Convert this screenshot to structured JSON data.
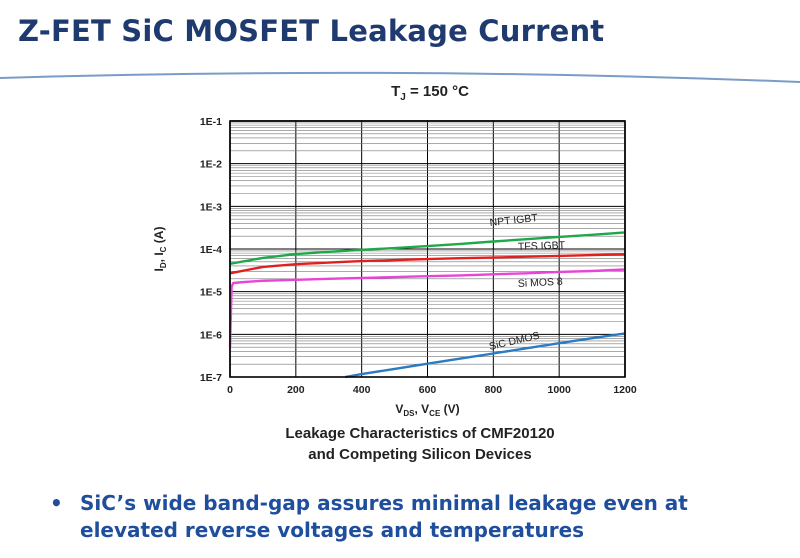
{
  "slide": {
    "title": "Z-FET SiC MOSFET Leakage Current",
    "caption_line1": "Leakage Characteristics of CMF20120",
    "caption_line2": "and Competing Silicon Devices",
    "bullet_marker": "•",
    "bullet": "SiC’s wide band-gap assures minimal leakage even at elevated reverse voltages and temperatures"
  },
  "colors": {
    "title": "#1f3a6e",
    "bullet": "#1f4e9c",
    "rule": "#7a9cc8"
  },
  "chart_data": {
    "type": "line",
    "title": "TJ = 150 °C",
    "xlabel": "VDS, VCE (V)",
    "ylabel": "ID, IC (A)",
    "xlim": [
      0,
      1200
    ],
    "ylim": [
      1e-07,
      0.1
    ],
    "yscale": "log",
    "grid": true,
    "x_ticks": [
      0,
      200,
      400,
      600,
      800,
      1000,
      1200
    ],
    "x_tick_labels": [
      "0",
      "200",
      "400",
      "600",
      "800",
      "1000",
      "1200"
    ],
    "y_ticks": [
      0.1,
      0.01,
      0.001,
      0.0001,
      1e-05,
      1e-06,
      1e-07
    ],
    "y_tick_labels": [
      "1E-1",
      "1E-2",
      "1E-3",
      "1E-4",
      "1E-5",
      "1E-6",
      "1E-7"
    ],
    "series": [
      {
        "name": "NPT IGBT",
        "color": "#1fa84a",
        "x": [
          0,
          100,
          200,
          300,
          400,
          500,
          600,
          700,
          800,
          900,
          1000,
          1100,
          1200
        ],
        "y": [
          4.5e-05,
          6.2e-05,
          7.6e-05,
          8.6e-05,
          9.6e-05,
          0.000105,
          0.000117,
          0.000132,
          0.00015,
          0.00017,
          0.000192,
          0.000215,
          0.000245
        ]
      },
      {
        "name": "TFS IGBT",
        "color": "#e02020",
        "x": [
          0,
          100,
          200,
          300,
          400,
          500,
          600,
          700,
          800,
          900,
          1000,
          1100,
          1200
        ],
        "y": [
          2.7e-05,
          3.8e-05,
          4.4e-05,
          4.8e-05,
          5.2e-05,
          5.5e-05,
          5.8e-05,
          6.1e-05,
          6.3e-05,
          6.6e-05,
          6.9e-05,
          7.2e-05,
          7.5e-05
        ]
      },
      {
        "name": "Si MOS 8",
        "color": "#e844d8",
        "x": [
          0,
          5,
          10,
          50,
          100,
          200,
          300,
          400,
          500,
          600,
          700,
          800,
          900,
          1000,
          1100,
          1200
        ],
        "y": [
          5e-07,
          1.3e-05,
          1.6e-05,
          1.7e-05,
          1.8e-05,
          1.9e-05,
          2e-05,
          2.1e-05,
          2.2e-05,
          2.3e-05,
          2.4e-05,
          2.55e-05,
          2.7e-05,
          2.9e-05,
          3.05e-05,
          3.3e-05
        ]
      },
      {
        "name": "SiC DMOS",
        "color": "#2a7ac4",
        "x": [
          350,
          400,
          500,
          600,
          700,
          800,
          900,
          1000,
          1100,
          1200
        ],
        "y": [
          1e-07,
          1.17e-07,
          1.55e-07,
          2.05e-07,
          2.7e-07,
          3.55e-07,
          4.7e-07,
          6.2e-07,
          8.1e-07,
          1.05e-06
        ]
      }
    ]
  }
}
